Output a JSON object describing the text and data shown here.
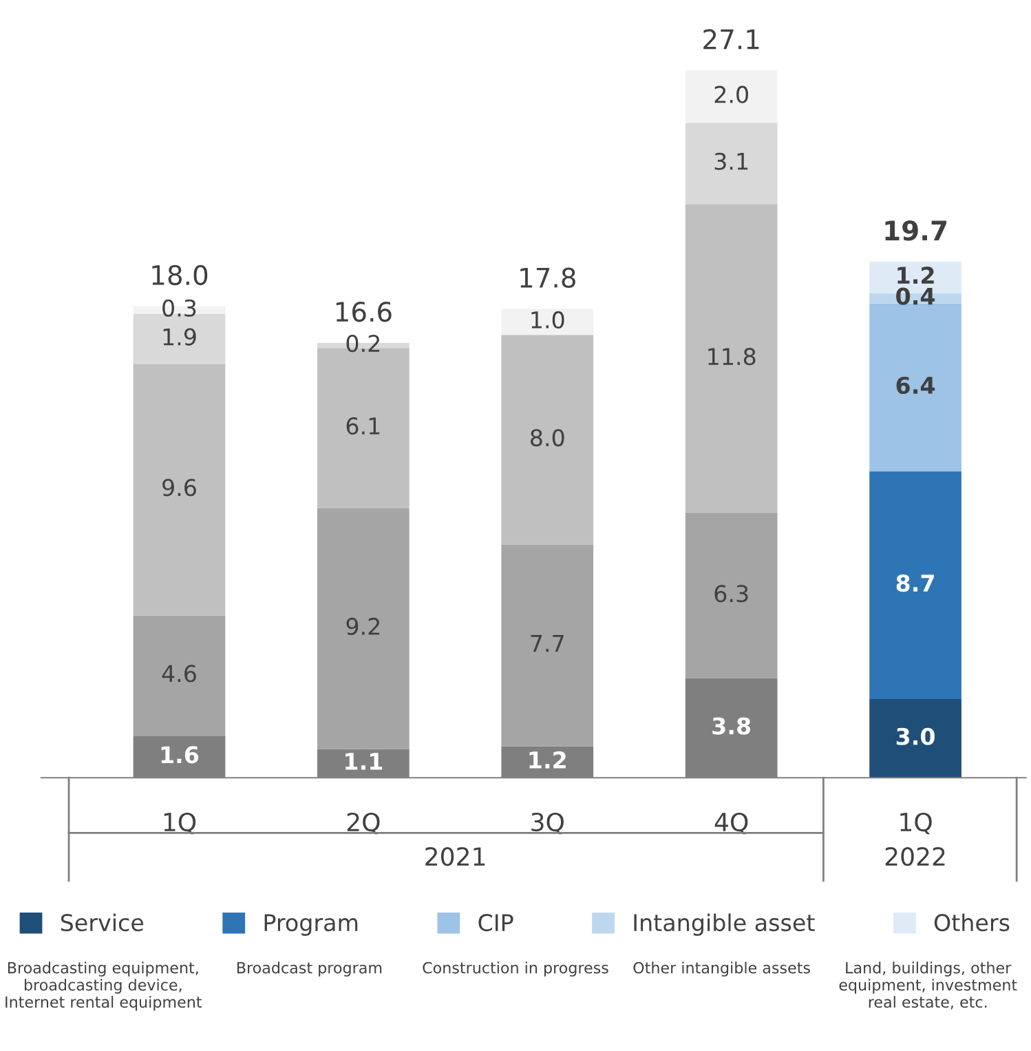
{
  "chart_data": {
    "type": "bar",
    "stacked": true,
    "categories": [
      "1Q",
      "2Q",
      "3Q",
      "4Q",
      "1Q"
    ],
    "series": [
      {
        "name": "Service",
        "color": "#1f4e79",
        "colors": [
          "#7f7f7f",
          "#7f7f7f",
          "#7f7f7f",
          "#7f7f7f",
          "#1f4e79"
        ],
        "values": [
          1.6,
          1.1,
          1.2,
          3.8,
          3.0
        ],
        "value_labels": [
          "1.6",
          "1.1",
          "1.2",
          "3.8",
          "3.0"
        ]
      },
      {
        "name": "Program",
        "color": "#2e75b6",
        "colors": [
          "#a5a5a5",
          "#a5a5a5",
          "#a5a5a5",
          "#a5a5a5",
          "#2e75b6"
        ],
        "values": [
          4.6,
          9.2,
          7.7,
          6.3,
          8.7
        ],
        "value_labels": [
          "4.6",
          "9.2",
          "7.7",
          "6.3",
          "8.7"
        ]
      },
      {
        "name": "CIP",
        "color": "#9dc3e6",
        "colors": [
          "#c0c0c0",
          "#c0c0c0",
          "#c0c0c0",
          "#c0c0c0",
          "#9dc3e6"
        ],
        "values": [
          9.6,
          6.1,
          8.0,
          11.8,
          6.4
        ],
        "value_labels": [
          "9.6",
          "6.1",
          "8.0",
          "11.8",
          "6.4"
        ]
      },
      {
        "name": "Intangible asset",
        "color": "#bdd7ee",
        "colors": [
          "#d9d9d9",
          "#d9d9d9",
          "#d9d9d9",
          "#d9d9d9",
          "#bdd7ee"
        ],
        "values": [
          1.9,
          0.2,
          0.0,
          3.1,
          0.4
        ],
        "value_labels": [
          "1.9",
          "0.2",
          null,
          "3.1",
          "0.4"
        ]
      },
      {
        "name": "Others",
        "color": "#deebf7",
        "colors": [
          "#f2f2f2",
          "#f2f2f2",
          "#f2f2f2",
          "#f2f2f2",
          "#deebf7"
        ],
        "values": [
          0.3,
          0.0,
          1.0,
          2.0,
          1.2
        ],
        "value_labels": [
          "0.3",
          null,
          "1.0",
          "2.0",
          "1.2"
        ]
      }
    ],
    "totals": [
      "18.0",
      "16.6",
      "17.8",
      "27.1",
      "19.7"
    ],
    "tick_labels": "x",
    "grid": false,
    "legend": "bottom",
    "annotations": [
      "2021",
      "2022",
      "Broadcasting equipment, broadcasting device, Internet rental equipment",
      "Broadcast program",
      "Construction in progress",
      "Other intangible assets",
      "Land, buildings, other equipment, investment real estate, etc."
    ]
  }
}
